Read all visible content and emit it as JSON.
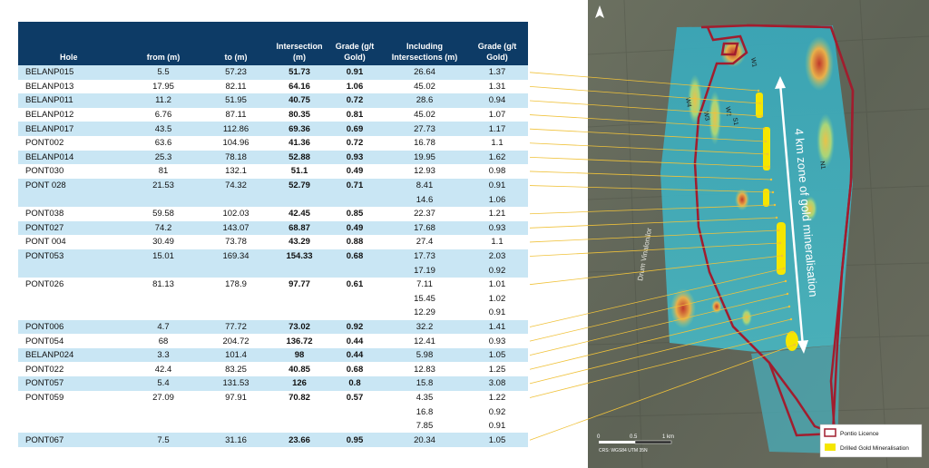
{
  "table": {
    "headers": {
      "hole": "Hole",
      "from": "from (m)",
      "to": "to (m)",
      "intersection": "Intersection (m)",
      "grade": "Grade (g/t Gold)",
      "including": "Including Intersections (m)",
      "grade2": "Grade (g/t Gold)"
    },
    "rows": [
      {
        "hole": "BELANP015",
        "from": "5.5",
        "to": "57.23",
        "intersection": "51.73",
        "grade": "0.91",
        "including": "26.64",
        "grade2": "1.37"
      },
      {
        "hole": "BELANP013",
        "from": "17.95",
        "to": "82.11",
        "intersection": "64.16",
        "grade": "1.06",
        "including": "45.02",
        "grade2": "1.31"
      },
      {
        "hole": "BELANP011",
        "from": "11.2",
        "to": "51.95",
        "intersection": "40.75",
        "grade": "0.72",
        "including": "28.6",
        "grade2": "0.94"
      },
      {
        "hole": "BELANP012",
        "from": "6.76",
        "to": "87.11",
        "intersection": "80.35",
        "grade": "0.81",
        "including": "45.02",
        "grade2": "1.07"
      },
      {
        "hole": "BELANP017",
        "from": "43.5",
        "to": "112.86",
        "intersection": "69.36",
        "grade": "0.69",
        "including": "27.73",
        "grade2": "1.17"
      },
      {
        "hole": "PONT002",
        "from": "63.6",
        "to": "104.96",
        "intersection": "41.36",
        "grade": "0.72",
        "including": "16.78",
        "grade2": "1.1"
      },
      {
        "hole": "BELANP014",
        "from": "25.3",
        "to": "78.18",
        "intersection": "52.88",
        "grade": "0.93",
        "including": "19.95",
        "grade2": "1.62"
      },
      {
        "hole": "PONT030",
        "from": "81",
        "to": "132.1",
        "intersection": "51.1",
        "grade": "0.49",
        "including": "12.93",
        "grade2": "0.98"
      },
      {
        "hole": "PONT 028",
        "from": "21.53",
        "to": "74.32",
        "intersection": "52.79",
        "grade": "0.71",
        "including": "8.41",
        "grade2": "0.91"
      },
      {
        "hole": "",
        "from": "",
        "to": "",
        "intersection": "",
        "grade": "",
        "including": "14.6",
        "grade2": "1.06"
      },
      {
        "hole": "PONT038",
        "from": "59.58",
        "to": "102.03",
        "intersection": "42.45",
        "grade": "0.85",
        "including": "22.37",
        "grade2": "1.21"
      },
      {
        "hole": "PONT027",
        "from": "74.2",
        "to": "143.07",
        "intersection": "68.87",
        "grade": "0.49",
        "including": "17.68",
        "grade2": "0.93"
      },
      {
        "hole": "PONT 004",
        "from": "30.49",
        "to": "73.78",
        "intersection": "43.29",
        "grade": "0.88",
        "including": "27.4",
        "grade2": "1.1"
      },
      {
        "hole": "PONT053",
        "from": "15.01",
        "to": "169.34",
        "intersection": "154.33",
        "grade": "0.68",
        "including": "17.73",
        "grade2": "2.03"
      },
      {
        "hole": "",
        "from": "",
        "to": "",
        "intersection": "",
        "grade": "",
        "including": "17.19",
        "grade2": "0.92"
      },
      {
        "hole": "PONT026",
        "from": "81.13",
        "to": "178.9",
        "intersection": "97.77",
        "grade": "0.61",
        "including": "7.11",
        "grade2": "1.01"
      },
      {
        "hole": "",
        "from": "",
        "to": "",
        "intersection": "",
        "grade": "",
        "including": "15.45",
        "grade2": "1.02"
      },
      {
        "hole": "",
        "from": "",
        "to": "",
        "intersection": "",
        "grade": "",
        "including": "12.29",
        "grade2": "0.91"
      },
      {
        "hole": "PONT006",
        "from": "4.7",
        "to": "77.72",
        "intersection": "73.02",
        "grade": "0.92",
        "including": "32.2",
        "grade2": "1.41"
      },
      {
        "hole": "PONT054",
        "from": "68",
        "to": "204.72",
        "intersection": "136.72",
        "grade": "0.44",
        "including": "12.41",
        "grade2": "0.93"
      },
      {
        "hole": "BELANP024",
        "from": "3.3",
        "to": "101.4",
        "intersection": "98",
        "grade": "0.44",
        "including": "5.98",
        "grade2": "1.05"
      },
      {
        "hole": "PONT022",
        "from": "42.4",
        "to": "83.25",
        "intersection": "40.85",
        "grade": "0.68",
        "including": "12.83",
        "grade2": "1.25"
      },
      {
        "hole": "PONT057",
        "from": "5.4",
        "to": "131.53",
        "intersection": "126",
        "grade": "0.8",
        "including": "15.8",
        "grade2": "3.08"
      },
      {
        "hole": "PONT059",
        "from": "27.09",
        "to": "97.91",
        "intersection": "70.82",
        "grade": "0.57",
        "including": "4.35",
        "grade2": "1.22"
      },
      {
        "hole": "",
        "from": "",
        "to": "",
        "intersection": "",
        "grade": "",
        "including": "16.8",
        "grade2": "0.92"
      },
      {
        "hole": "",
        "from": "",
        "to": "",
        "intersection": "",
        "grade": "",
        "including": "7.85",
        "grade2": "0.91"
      },
      {
        "hole": "PONT067",
        "from": "7.5",
        "to": "31.16",
        "intersection": "23.66",
        "grade": "0.95",
        "including": "20.34",
        "grade2": "1.05"
      }
    ]
  },
  "map": {
    "zone_label": "4 km zone of gold mineralisation",
    "road_label": "Drum Vinalonilor",
    "lode_labels": [
      "W4",
      "W3",
      "W2",
      "W1",
      "S1",
      "N1"
    ],
    "scale_labels": [
      "0",
      "0.5",
      "1 km"
    ],
    "crs_label": "CRS: WGS84 UTM 35N",
    "legend": [
      {
        "label": "Pontio Licence",
        "color": "#a11d2e"
      },
      {
        "label": "Drilled Gold Mineralisation",
        "color": "#f5e600"
      }
    ],
    "colors": {
      "leader": "#f0c23a",
      "boundary": "#a11d2e",
      "header": "#0d3b66",
      "row_blue": "#c9e6f4"
    }
  }
}
